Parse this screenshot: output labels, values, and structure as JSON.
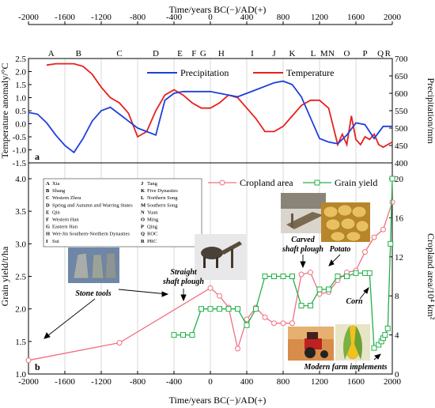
{
  "colors": {
    "precipitation": "#1f3fd9",
    "temperature": "#e8201c",
    "cropland": "#f07080",
    "grain": "#22b04a",
    "grid": "#c8c8c8"
  },
  "top_axis": {
    "title": "Time/years BC(−)/AD(+)",
    "ticks": [
      "-2000",
      "-1600",
      "-1200",
      "-800",
      "-400",
      "0",
      "400",
      "800",
      "1200",
      "1600",
      "2000"
    ],
    "period_letters": [
      "A",
      "B",
      "C",
      "D",
      "E",
      "F",
      "G",
      "H",
      "I",
      "J",
      "K",
      "L",
      "M",
      "N",
      "O",
      "P",
      "Q",
      "R"
    ]
  },
  "bottom_axis": {
    "title": "Time/years BC(−)/AD(+)"
  },
  "chart_data": [
    {
      "type": "line",
      "panel_label": "a",
      "xlim": [
        -2000,
        2000
      ],
      "ylabel": "Temperature anomaly/°C",
      "ylim": [
        -1.5,
        2.5
      ],
      "yticks": [
        "-1.5",
        "-1.0",
        "-0.5",
        "0.0",
        "0.5",
        "1.0",
        "1.5",
        "2.0",
        "2.5"
      ],
      "y2label": "Precipitation/mm",
      "y2lim": [
        400,
        700
      ],
      "y2ticks": [
        "400",
        "450",
        "500",
        "550",
        "600",
        "650",
        "700"
      ],
      "series": [
        {
          "name": "Precipitation",
          "axis": "right",
          "x": [
            -2000,
            -1900,
            -1800,
            -1700,
            -1600,
            -1500,
            -1400,
            -1300,
            -1200,
            -1100,
            -1000,
            -900,
            -800,
            -700,
            -600,
            -500,
            -400,
            -300,
            -200,
            -100,
            0,
            100,
            200,
            300,
            400,
            500,
            600,
            700,
            800,
            900,
            1000,
            1100,
            1200,
            1300,
            1400,
            1500,
            1600,
            1700,
            1800,
            1900,
            2000
          ],
          "y": [
            545,
            540,
            515,
            480,
            450,
            430,
            470,
            520,
            550,
            560,
            540,
            520,
            500,
            490,
            480,
            580,
            600,
            605,
            605,
            605,
            605,
            600,
            595,
            590,
            600,
            610,
            620,
            630,
            635,
            625,
            590,
            530,
            470,
            460,
            455,
            480,
            515,
            510,
            470,
            505,
            505
          ]
        },
        {
          "name": "Temperature",
          "axis": "left",
          "x": [
            -1800,
            -1700,
            -1600,
            -1500,
            -1400,
            -1300,
            -1200,
            -1100,
            -1000,
            -900,
            -800,
            -700,
            -600,
            -500,
            -400,
            -300,
            -200,
            -100,
            0,
            100,
            200,
            300,
            400,
            500,
            600,
            700,
            800,
            900,
            1000,
            1100,
            1200,
            1300,
            1400,
            1450,
            1500,
            1550,
            1600,
            1650,
            1700,
            1750,
            1800,
            1850,
            1900,
            1950,
            2000
          ],
          "y": [
            2.25,
            2.3,
            2.3,
            2.3,
            2.2,
            1.9,
            1.4,
            1.0,
            0.8,
            0.4,
            -0.5,
            -0.3,
            0.5,
            1.1,
            1.3,
            1.1,
            0.8,
            0.6,
            0.6,
            0.8,
            1.1,
            1.0,
            0.6,
            0.2,
            -0.3,
            -0.3,
            -0.1,
            0.3,
            0.7,
            0.9,
            0.9,
            0.6,
            -0.8,
            -0.4,
            -0.8,
            0.3,
            -0.6,
            -0.8,
            -0.5,
            -0.6,
            -0.4,
            -0.8,
            -0.9,
            -0.8,
            -0.7
          ]
        }
      ]
    },
    {
      "type": "line",
      "panel_label": "b",
      "xlim": [
        -2000,
        2000
      ],
      "xticks": [
        "-2000",
        "-1600",
        "-1200",
        "-800",
        "-400",
        "0",
        "400",
        "800",
        "1200",
        "1600",
        "2000"
      ],
      "ylabel": "Grain yield/t/ha",
      "ylim": [
        1.0,
        4.0
      ],
      "yticks": [
        "1.0",
        "1.5",
        "2.0",
        "2.5",
        "3.0",
        "3.5",
        "4.0"
      ],
      "y2label": "Cropland area/10⁴ km²",
      "y2lim": [
        0,
        20
      ],
      "y2ticks": [
        "0",
        "4",
        "8",
        "12",
        "16",
        "20"
      ],
      "series": [
        {
          "name": "Cropland area",
          "axis": "right",
          "x": [
            -2000,
            -1000,
            0,
            100,
            200,
            300,
            400,
            500,
            600,
            700,
            800,
            900,
            1000,
            1100,
            1200,
            1300,
            1400,
            1500,
            1600,
            1700,
            1800,
            1900,
            2000
          ],
          "y": [
            1.4,
            3.2,
            8.8,
            8.0,
            6.8,
            2.6,
            5.6,
            6.8,
            5.8,
            5.2,
            5.2,
            5.2,
            10.2,
            10.4,
            8.2,
            8.4,
            9.6,
            10.4,
            10.6,
            12.5,
            14.0,
            14.8,
            17.6
          ]
        },
        {
          "name": "Grain yield",
          "axis": "left",
          "x": [
            -400,
            -300,
            -200,
            -100,
            0,
            100,
            200,
            300,
            400,
            500,
            600,
            700,
            800,
            900,
            1000,
            1100,
            1200,
            1300,
            1400,
            1500,
            1600,
            1700,
            1750,
            1800,
            1850,
            1880,
            1900,
            1920,
            1950,
            1980,
            2000
          ],
          "y": [
            1.6,
            1.6,
            1.6,
            2.0,
            2.0,
            2.0,
            2.0,
            2.0,
            1.75,
            2.0,
            2.5,
            2.5,
            2.5,
            2.5,
            2.05,
            2.05,
            2.3,
            2.3,
            2.5,
            2.5,
            2.55,
            2.55,
            2.55,
            1.4,
            1.45,
            1.5,
            1.55,
            1.6,
            1.7,
            3.0,
            4.0
          ]
        }
      ]
    }
  ],
  "dynasty_legend": [
    {
      "k": "A",
      "v": "Xia"
    },
    {
      "k": "B",
      "v": "Shang"
    },
    {
      "k": "C",
      "v": "Western Zhou"
    },
    {
      "k": "D",
      "v": "Spring and Autumn and Warring States"
    },
    {
      "k": "E",
      "v": "Qin"
    },
    {
      "k": "F",
      "v": "Western Han"
    },
    {
      "k": "G",
      "v": "Eastern Han"
    },
    {
      "k": "H",
      "v": "Wei-Jin Southern-Northern Dynasties"
    },
    {
      "k": "I",
      "v": "Sui"
    },
    {
      "k": "J",
      "v": "Tang"
    },
    {
      "k": "K",
      "v": "Five Dynasties"
    },
    {
      "k": "L",
      "v": "Northern Song"
    },
    {
      "k": "M",
      "v": "Southern Song"
    },
    {
      "k": "N",
      "v": "Yuan"
    },
    {
      "k": "O",
      "v": "Ming"
    },
    {
      "k": "P",
      "v": "Qing"
    },
    {
      "k": "Q",
      "v": "ROC"
    },
    {
      "k": "R",
      "v": "PRC"
    }
  ],
  "annotations": {
    "stone": "Stone tools",
    "straight1": "Straight",
    "straight2": "shaft plough",
    "carved1": "Carved",
    "carved2": "shaft plough",
    "potato": "Potato",
    "corn": "Corn",
    "modern": "Modern farm implements"
  }
}
